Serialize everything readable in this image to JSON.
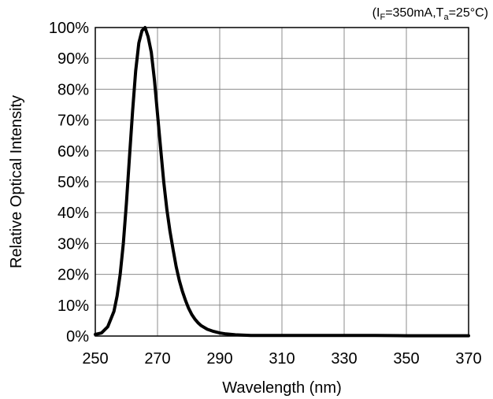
{
  "chart_data": {
    "type": "line",
    "title": "",
    "xlabel": "Wavelength (nm)",
    "ylabel": "Relative Optical Intensity",
    "condition": {
      "open": "(I",
      "sub1": "F",
      "mid": "=350mA,T",
      "sub2": "a",
      "close": "=25°C)"
    },
    "xlim": [
      250,
      370
    ],
    "ylim": [
      0,
      100
    ],
    "x_ticks": [
      250,
      270,
      290,
      310,
      330,
      350,
      370
    ],
    "x_tick_labels": [
      "250",
      "270",
      "290",
      "310",
      "330",
      "350",
      "370"
    ],
    "y_ticks": [
      0,
      10,
      20,
      30,
      40,
      50,
      60,
      70,
      80,
      90,
      100
    ],
    "y_tick_labels": [
      "0%",
      "10%",
      "20%",
      "30%",
      "40%",
      "50%",
      "60%",
      "70%",
      "80%",
      "90%",
      "100%"
    ],
    "grid": true,
    "line_color": "#000000",
    "series": [
      {
        "x": [
          250,
          252,
          254,
          256,
          257,
          258,
          259,
          260,
          261,
          262,
          263,
          264,
          265,
          266,
          267,
          268,
          269,
          270,
          271,
          272,
          273,
          274,
          275,
          276,
          277,
          278,
          279,
          280,
          281,
          282,
          283,
          284,
          286,
          288,
          290,
          292,
          295,
          300,
          310,
          320,
          330,
          340,
          350,
          360,
          370
        ],
        "y": [
          0.5,
          1,
          3,
          8,
          13,
          20,
          30,
          43,
          58,
          73,
          86,
          95,
          99,
          100,
          97,
          92,
          83,
          72,
          61,
          50,
          41,
          34,
          28,
          22.5,
          18,
          14.5,
          11.5,
          9,
          7,
          5.5,
          4.3,
          3.4,
          2.2,
          1.5,
          1,
          0.7,
          0.4,
          0.2,
          0.2,
          0.2,
          0.2,
          0.2,
          0.1,
          0.1,
          0.1
        ]
      }
    ]
  }
}
